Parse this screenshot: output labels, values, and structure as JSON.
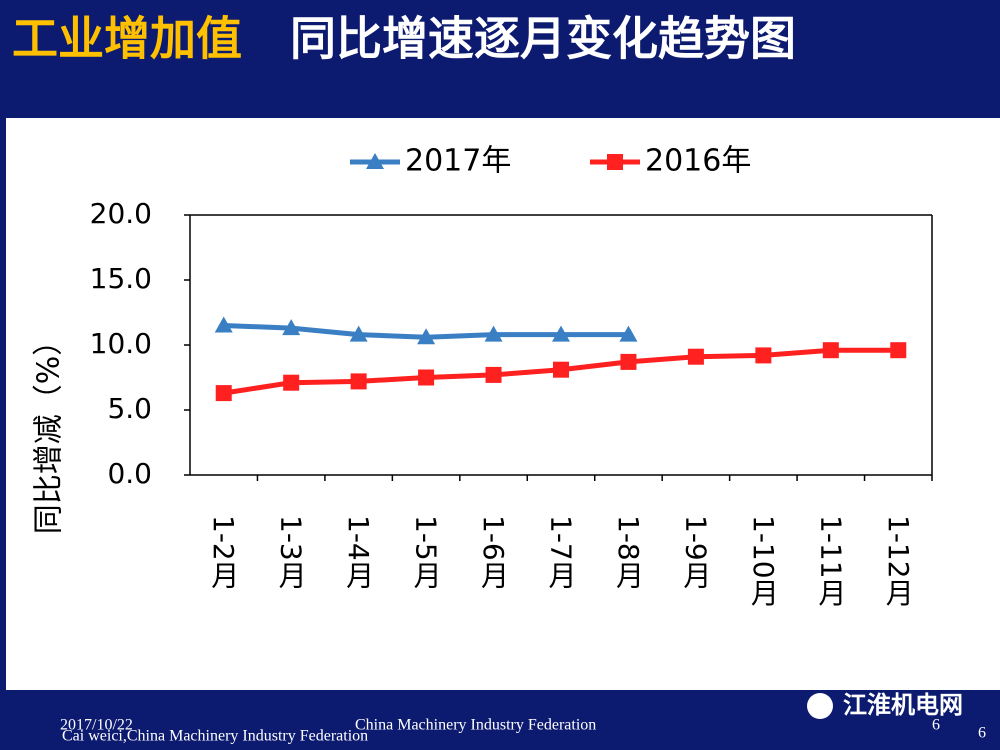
{
  "chart_data": {
    "type": "line",
    "title": "工业增加值",
    "subtitle": "同比增速逐月变化趋势图",
    "y_label": "同比增减（%）",
    "categories": [
      "1-2月",
      "1-3月",
      "1-4月",
      "1-5月",
      "1-6月",
      "1-7月",
      "1-8月",
      "1-9月",
      "1-10月",
      "1-11月",
      "1-12月"
    ],
    "series": [
      {
        "name": "2017年",
        "color": "#3a7fc4",
        "marker": "triangle",
        "values": [
          11.5,
          11.3,
          10.8,
          10.6,
          10.8,
          10.8,
          10.8,
          null,
          null,
          null,
          null
        ]
      },
      {
        "name": "2016年",
        "color": "#ff2020",
        "marker": "square",
        "values": [
          6.3,
          7.1,
          7.2,
          7.5,
          7.7,
          8.1,
          8.7,
          9.1,
          9.2,
          9.6,
          9.6
        ]
      }
    ],
    "ylim": [
      0,
      20
    ],
    "yticks": [
      {
        "value": 0,
        "label": "0.0"
      },
      {
        "value": 5,
        "label": "5.0"
      },
      {
        "value": 10,
        "label": "10.0"
      },
      {
        "value": 15,
        "label": "15.0"
      },
      {
        "value": 20,
        "label": "20.0"
      }
    ],
    "legend": "top",
    "grid": false
  },
  "footer": {
    "date": "2017/10/22",
    "org": "China Machinery Industry Federation",
    "author": "Cai weici,China Machinery Industry Federation",
    "page": "6",
    "page_right": "6",
    "watermark": "江淮机电网"
  }
}
